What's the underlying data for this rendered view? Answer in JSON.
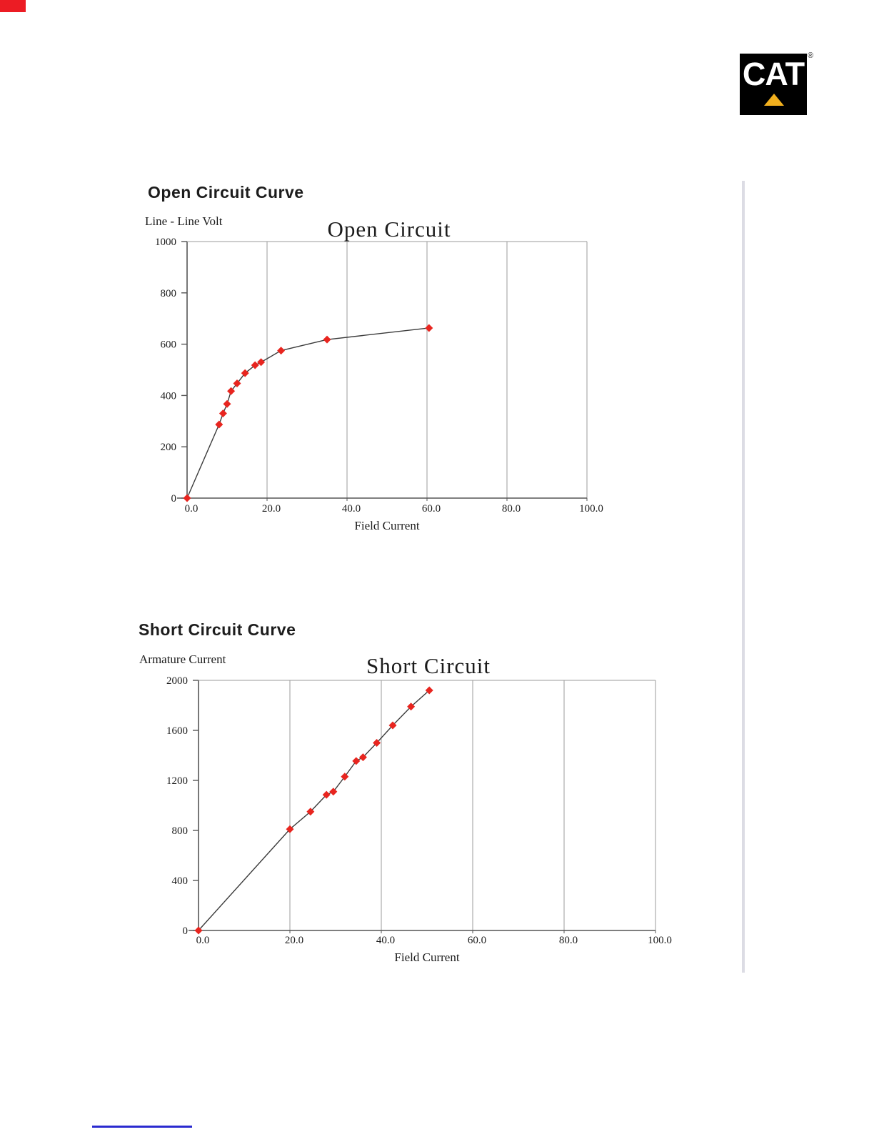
{
  "page": {
    "artifact_color": "#ec1c24",
    "divider_color": "#dcdce4",
    "link_color": "#2a2acf"
  },
  "logo": {
    "text": "CAT",
    "registered": "®",
    "bg": "#000000",
    "triangle_color": "#f2b01e"
  },
  "sections": [
    {
      "heading": "Open Circuit Curve"
    },
    {
      "heading": "Short Circuit Curve"
    }
  ],
  "chart_data": [
    {
      "type": "line",
      "title": "Open Circuit",
      "ylabel": "Line - Line Volt",
      "xlabel": "Field Current",
      "x_ticks": [
        "0.0",
        "20.0",
        "40.0",
        "60.0",
        "80.0",
        "100.0"
      ],
      "y_ticks": [
        "1000",
        "800",
        "600",
        "400",
        "200",
        "0"
      ],
      "xlim": [
        0,
        100
      ],
      "ylim": [
        0,
        1000
      ],
      "grid": "vertical",
      "marker": "diamond",
      "marker_color": "#e8251f",
      "line_color": "#3a3a3a",
      "points": [
        [
          0,
          0
        ],
        [
          8,
          287
        ],
        [
          9,
          330
        ],
        [
          10,
          367
        ],
        [
          11,
          417
        ],
        [
          12.5,
          447
        ],
        [
          14.5,
          487
        ],
        [
          17,
          518
        ],
        [
          18.5,
          530
        ],
        [
          23.5,
          575
        ],
        [
          35,
          618
        ],
        [
          60.5,
          663
        ]
      ]
    },
    {
      "type": "line",
      "title": "Short Circuit",
      "ylabel": "Armature Current",
      "xlabel": "Field Current",
      "x_ticks": [
        "0.0",
        "20.0",
        "40.0",
        "60.0",
        "80.0",
        "100.0"
      ],
      "y_ticks": [
        "2000",
        "1600",
        "1200",
        "800",
        "400",
        "0"
      ],
      "xlim": [
        0,
        100
      ],
      "ylim": [
        0,
        2000
      ],
      "grid": "vertical",
      "marker": "diamond",
      "marker_color": "#e8251f",
      "line_color": "#3a3a3a",
      "points": [
        [
          0,
          0
        ],
        [
          20,
          810
        ],
        [
          24.5,
          950
        ],
        [
          28,
          1085
        ],
        [
          29.5,
          1110
        ],
        [
          32,
          1230
        ],
        [
          34.5,
          1355
        ],
        [
          36,
          1385
        ],
        [
          39,
          1500
        ],
        [
          42.5,
          1640
        ],
        [
          46.5,
          1790
        ],
        [
          50.5,
          1920
        ]
      ]
    }
  ]
}
